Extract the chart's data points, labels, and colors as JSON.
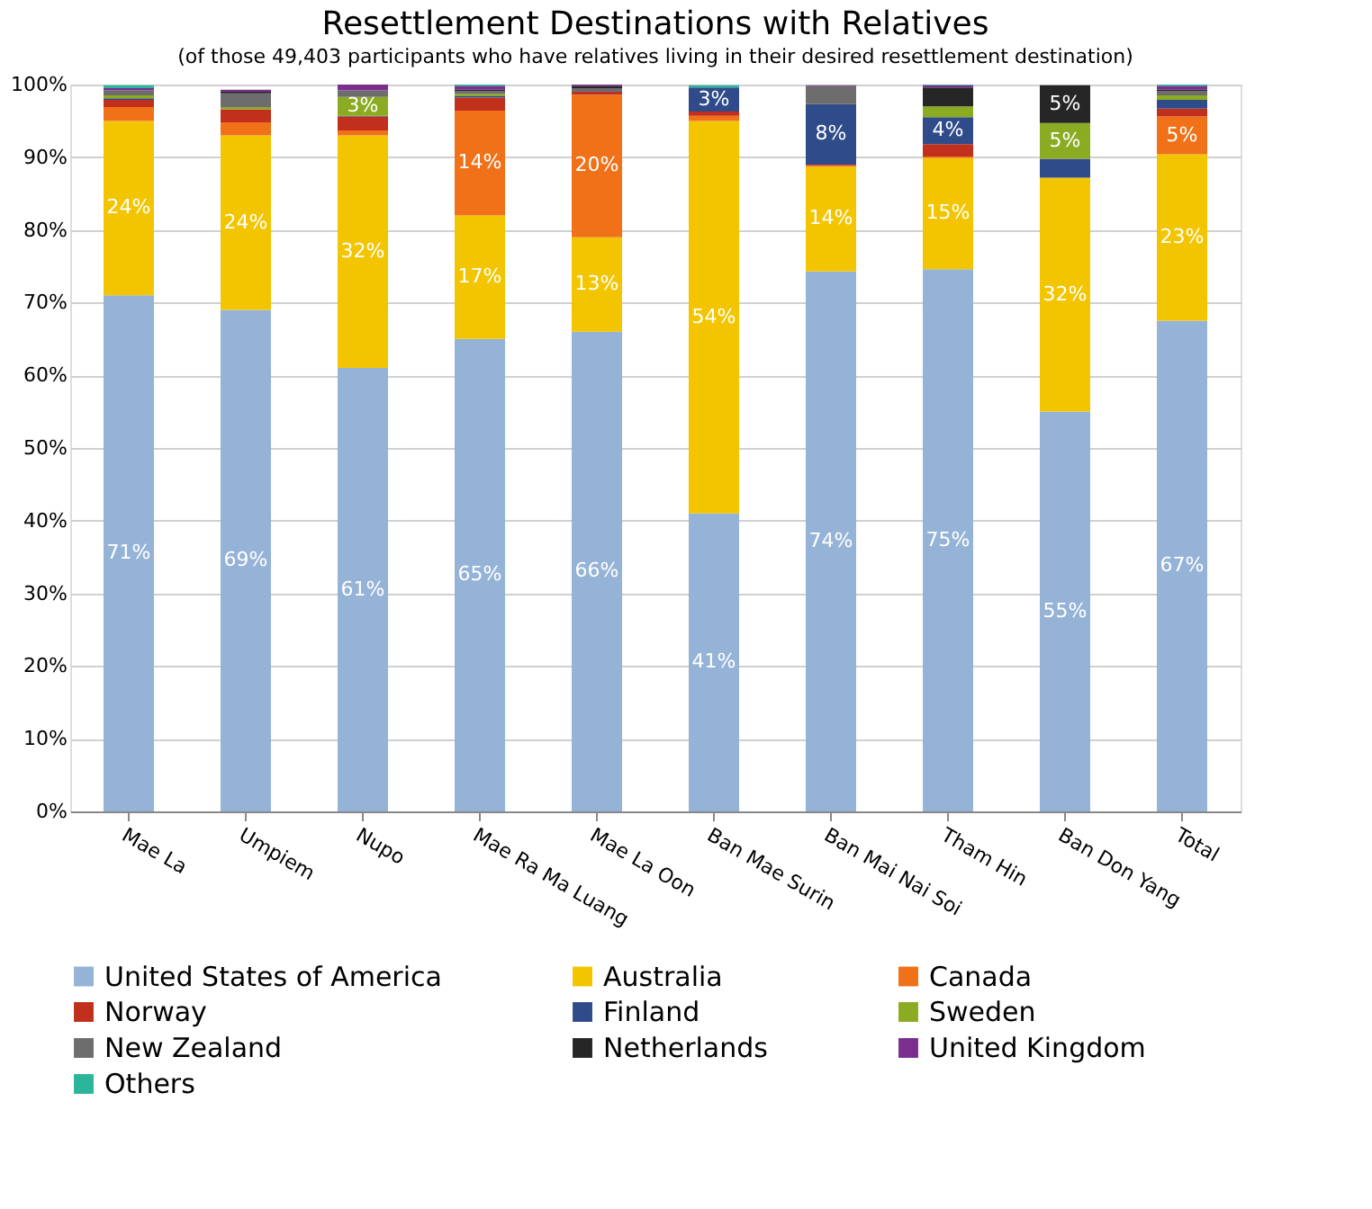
{
  "chart_data": {
    "type": "bar",
    "stacked": true,
    "title": "Resettlement Destinations with Relatives",
    "subtitle": "(of those 49,403 participants who have relatives  living in their desired resettlement destination)",
    "categories": [
      "Mae La",
      "Umpiem",
      "Nupo",
      "Mae Ra Ma Luang",
      "Mae La Oon",
      "Ban Mae Surin",
      "Ban Mai Nai Soi",
      "Tham Hin",
      "Ban Don Yang",
      "Total"
    ],
    "ylim": [
      0,
      100
    ],
    "yticks": [
      {
        "value": 0,
        "label": "0%"
      },
      {
        "value": 10,
        "label": "10%"
      },
      {
        "value": 20,
        "label": "20%"
      },
      {
        "value": 30,
        "label": "30%"
      },
      {
        "value": 40,
        "label": "40%"
      },
      {
        "value": 50,
        "label": "50%"
      },
      {
        "value": 60,
        "label": "60%"
      },
      {
        "value": 70,
        "label": "70%"
      },
      {
        "value": 80,
        "label": "80%"
      },
      {
        "value": 90,
        "label": "90%"
      },
      {
        "value": 100,
        "label": "100%"
      }
    ],
    "grid": "y",
    "legend": "bottom",
    "series": [
      {
        "name": "United States of America",
        "color": "#95b3d7",
        "values": [
          71,
          69,
          61,
          65,
          66,
          41,
          74.3,
          74.6,
          55,
          67.5
        ],
        "value_labels": [
          "71%",
          "69%",
          "61%",
          "65%",
          "66%",
          "41%",
          "74%",
          "75%",
          "55%",
          "67%"
        ]
      },
      {
        "name": "Australia",
        "color": "#f2c500",
        "values": [
          24,
          24,
          32,
          17,
          13,
          54,
          14.4,
          15.3,
          32.2,
          22.9
        ],
        "value_labels": [
          "24%",
          "24%",
          "32%",
          "17%",
          "13%",
          "54%",
          "14%",
          "15%",
          "32%",
          "23%"
        ]
      },
      {
        "name": "Canada",
        "color": "#f07118",
        "values": [
          1.9,
          1.8,
          0.7,
          14.4,
          19.6,
          0.7,
          0.2,
          0.2,
          null,
          5.2
        ],
        "value_labels": [
          null,
          null,
          null,
          "14%",
          "20%",
          null,
          null,
          null,
          null,
          "5%"
        ]
      },
      {
        "name": "Norway",
        "color": "#c0301c",
        "values": [
          1.0,
          1.8,
          1.9,
          1.8,
          0.4,
          0.6,
          0.1,
          1.7,
          0,
          1.1
        ]
      },
      {
        "name": "Finland",
        "color": "#2f4b8a",
        "values": [
          0.2,
          null,
          0.1,
          0.2,
          0.1,
          3.3,
          8.3,
          3.7,
          2.6,
          1.2
        ],
        "value_labels": [
          null,
          null,
          null,
          null,
          null,
          "3%",
          "8%",
          "4%",
          null,
          null
        ]
      },
      {
        "name": "Sweden",
        "color": "#8bab22",
        "values": [
          0.4,
          0.3,
          2.6,
          0.3,
          0,
          0,
          0,
          1.5,
          4.9,
          0.6
        ],
        "value_labels": [
          null,
          null,
          "3%",
          null,
          null,
          null,
          null,
          null,
          "5%",
          null
        ]
      },
      {
        "name": "New Zealand",
        "color": "#6d6d6d",
        "values": [
          0.7,
          1.9,
          0.9,
          0.4,
          0.4,
          0,
          2.5,
          0,
          0,
          0.6
        ]
      },
      {
        "name": "Netherlands",
        "color": "#262626",
        "values": [
          null,
          0.2,
          0,
          0.2,
          0.3,
          0,
          0,
          2.6,
          5.2,
          0.2
        ],
        "value_labels": [
          null,
          null,
          null,
          null,
          null,
          null,
          null,
          null,
          "5%",
          null
        ]
      },
      {
        "name": "United Kingdom",
        "color": "#7b2e8e",
        "values": [
          0.3,
          0.3,
          0.8,
          0.5,
          0.2,
          0,
          0.1,
          0.3,
          0,
          0.5
        ]
      },
      {
        "name": "Others",
        "color": "#2bb59a",
        "values": [
          0.4,
          0,
          0,
          0.2,
          0,
          0.3,
          0,
          0.1,
          0,
          0.2
        ]
      }
    ]
  }
}
